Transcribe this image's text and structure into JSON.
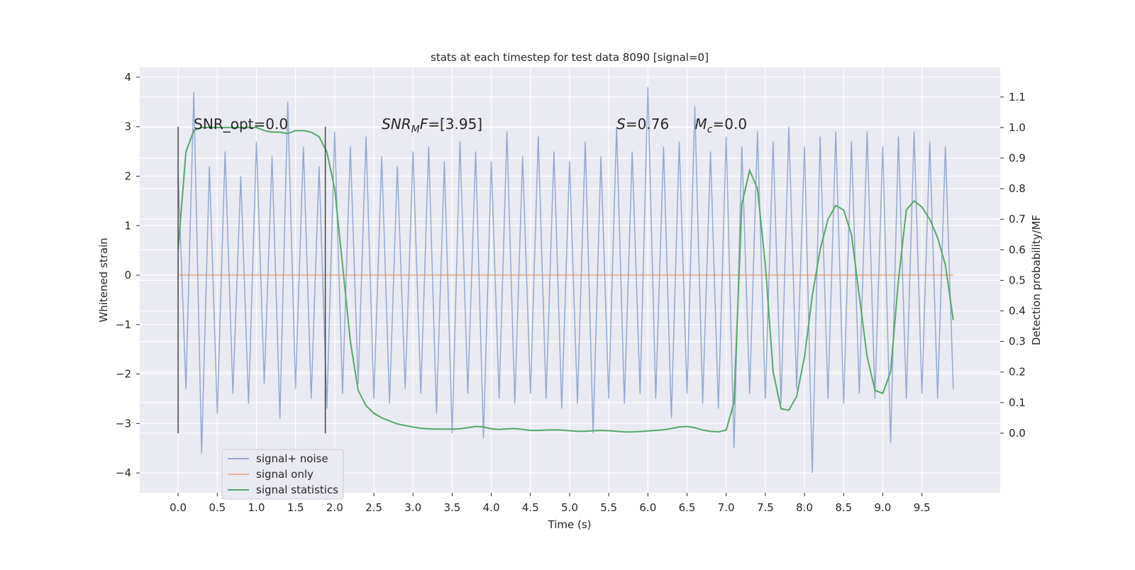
{
  "chart_data": {
    "type": "line",
    "title": "stats at each timestep for test data 8090 [signal=0]",
    "x_label": "Time (s)",
    "y_label": "Whitened strain",
    "y2_label": "Detection probability/MF",
    "xlim": [
      -0.49,
      10.5
    ],
    "ylim": [
      -4.4,
      4.2
    ],
    "y2lim": [
      -0.195,
      1.197
    ],
    "xticks": [
      {
        "value": 0,
        "label": "0.0"
      },
      {
        "value": 0.5,
        "label": "0.5"
      },
      {
        "value": 1,
        "label": "1.0"
      },
      {
        "value": 1.5,
        "label": "1.5"
      },
      {
        "value": 2,
        "label": "2.0"
      },
      {
        "value": 2.5,
        "label": "2.5"
      },
      {
        "value": 3,
        "label": "3.0"
      },
      {
        "value": 3.5,
        "label": "3.5"
      },
      {
        "value": 4,
        "label": "4.0"
      },
      {
        "value": 4.5,
        "label": "4.5"
      },
      {
        "value": 5,
        "label": "5.0"
      },
      {
        "value": 5.5,
        "label": "5.5"
      },
      {
        "value": 6,
        "label": "6.0"
      },
      {
        "value": 6.5,
        "label": "6.5"
      },
      {
        "value": 7,
        "label": "7.0"
      },
      {
        "value": 7.5,
        "label": "7.5"
      },
      {
        "value": 8,
        "label": "8.0"
      },
      {
        "value": 8.5,
        "label": "8.5"
      },
      {
        "value": 9,
        "label": "9.0"
      },
      {
        "value": 9.5,
        "label": "9.5"
      }
    ],
    "yticks": [
      {
        "value": -4,
        "label": "−4"
      },
      {
        "value": -3,
        "label": "−3"
      },
      {
        "value": -2,
        "label": "−2"
      },
      {
        "value": -1,
        "label": "−1"
      },
      0,
      1,
      2,
      3,
      4
    ],
    "y2ticks": [
      {
        "value": 0,
        "label": "0.0"
      },
      {
        "value": 0.1,
        "label": "0.1"
      },
      {
        "value": 0.2,
        "label": "0.2"
      },
      {
        "value": 0.3,
        "label": "0.3"
      },
      {
        "value": 0.4,
        "label": "0.4"
      },
      {
        "value": 0.5,
        "label": "0.5"
      },
      {
        "value": 0.6,
        "label": "0.6"
      },
      {
        "value": 0.7,
        "label": "0.7"
      },
      {
        "value": 0.8,
        "label": "0.8"
      },
      {
        "value": 0.9,
        "label": "0.9"
      },
      {
        "value": 1,
        "label": "1.0"
      },
      {
        "value": 1.1,
        "label": "1.1"
      }
    ],
    "grid": true,
    "legend": "lower left",
    "x": [
      0,
      0.1,
      0.2,
      0.3,
      0.4,
      0.5,
      0.6,
      0.7,
      0.8,
      0.9,
      1,
      1.1,
      1.2,
      1.3,
      1.4,
      1.5,
      1.6,
      1.7,
      1.8,
      1.9,
      2,
      2.1,
      2.2,
      2.3,
      2.4,
      2.5,
      2.6,
      2.7,
      2.8,
      2.9,
      3,
      3.1,
      3.2,
      3.3,
      3.4,
      3.5,
      3.6,
      3.7,
      3.8,
      3.9,
      4,
      4.1,
      4.2,
      4.3,
      4.4,
      4.5,
      4.6,
      4.7,
      4.8,
      4.9,
      5,
      5.1,
      5.2,
      5.3,
      5.4,
      5.5,
      5.6,
      5.7,
      5.8,
      5.9,
      6,
      6.1,
      6.2,
      6.3,
      6.4,
      6.5,
      6.6,
      6.7,
      6.8,
      6.9,
      7,
      7.1,
      7.2,
      7.3,
      7.4,
      7.5,
      7.6,
      7.7,
      7.8,
      7.9,
      8,
      8.1,
      8.2,
      8.3,
      8.4,
      8.5,
      8.6,
      8.7,
      8.8,
      8.9,
      9,
      9.1,
      9.2,
      9.3,
      9.4,
      9.5,
      9.6,
      9.7,
      9.8,
      9.9
    ],
    "series": [
      {
        "name": "signal+ noise",
        "color": "#4c72b0",
        "values": [
          2.1,
          -2.3,
          3.7,
          -3.6,
          2.2,
          -2.8,
          2.5,
          -2.4,
          2.0,
          -2.6,
          2.7,
          -2.2,
          2.4,
          -2.9,
          3.5,
          -2.3,
          2.6,
          -2.5,
          2.2,
          -2.7,
          2.9,
          -2.4,
          2.6,
          -2.2,
          2.8,
          -2.5,
          2.4,
          -2.6,
          2.2,
          -2.3,
          2.5,
          -2.4,
          2.6,
          -2.8,
          2.3,
          -3.2,
          2.7,
          -2.4,
          2.5,
          -3.3,
          2.3,
          -2.5,
          2.9,
          -2.6,
          2.4,
          -2.4,
          2.8,
          -2.5,
          2.5,
          -2.7,
          2.3,
          -2.6,
          2.7,
          -3.2,
          2.4,
          -2.5,
          3.0,
          -2.6,
          2.5,
          -2.4,
          3.8,
          -2.5,
          2.6,
          -2.9,
          2.7,
          -2.4,
          3.4,
          -2.6,
          2.5,
          -2.7,
          2.8,
          -3.5,
          2.6,
          -2.4,
          2.9,
          -2.5,
          2.7,
          -2.6,
          3.0,
          -2.3,
          2.6,
          -4.0,
          2.8,
          -2.5,
          2.9,
          -2.6,
          2.7,
          -2.4,
          2.9,
          -2.5,
          2.6,
          -3.4,
          2.8,
          -2.5,
          2.9,
          -2.4,
          2.7,
          -2.5,
          2.6,
          -2.3
        ]
      },
      {
        "name": "signal only",
        "color": "#dd8452",
        "values": [
          0,
          0,
          0,
          0,
          0,
          0,
          0,
          0,
          0,
          0,
          0,
          0,
          0,
          0,
          0,
          0,
          0,
          0,
          0,
          0,
          0,
          0,
          0,
          0,
          0,
          0,
          0,
          0,
          0,
          0,
          0,
          0,
          0,
          0,
          0,
          0,
          0,
          0,
          0,
          0,
          0,
          0,
          0,
          0,
          0,
          0,
          0,
          0,
          0,
          0,
          0,
          0,
          0,
          0,
          0,
          0,
          0,
          0,
          0,
          0,
          0,
          0,
          0,
          0,
          0,
          0,
          0,
          0,
          0,
          0,
          0,
          0,
          0,
          0,
          0,
          0,
          0,
          0,
          0,
          0,
          0,
          0,
          0,
          0,
          0,
          0,
          0,
          0,
          0,
          0,
          0,
          0,
          0,
          0,
          0,
          0,
          0,
          0,
          0,
          0
        ]
      },
      {
        "name": "signal statistics",
        "color": "#55a868",
        "axis": "y2",
        "values": [
          0.6,
          0.92,
          0.99,
          1.0,
          1.0,
          1.0,
          1.0,
          1.0,
          1.0,
          1.0,
          1.0,
          0.99,
          0.985,
          0.985,
          0.98,
          0.99,
          0.99,
          0.985,
          0.97,
          0.92,
          0.8,
          0.55,
          0.3,
          0.14,
          0.09,
          0.065,
          0.05,
          0.04,
          0.03,
          0.025,
          0.02,
          0.016,
          0.014,
          0.013,
          0.013,
          0.013,
          0.014,
          0.018,
          0.022,
          0.02,
          0.014,
          0.012,
          0.014,
          0.015,
          0.012,
          0.009,
          0.009,
          0.01,
          0.011,
          0.01,
          0.008,
          0.006,
          0.006,
          0.008,
          0.009,
          0.008,
          0.006,
          0.004,
          0.004,
          0.005,
          0.007,
          0.009,
          0.011,
          0.015,
          0.02,
          0.022,
          0.018,
          0.01,
          0.006,
          0.004,
          0.01,
          0.1,
          0.75,
          0.86,
          0.8,
          0.55,
          0.2,
          0.08,
          0.075,
          0.12,
          0.25,
          0.45,
          0.6,
          0.7,
          0.745,
          0.73,
          0.65,
          0.45,
          0.25,
          0.14,
          0.13,
          0.2,
          0.5,
          0.73,
          0.76,
          0.74,
          0.7,
          0.64,
          0.55,
          0.37
        ]
      }
    ],
    "vlines": [
      {
        "x": 0,
        "ymin": -3.2,
        "ymax": 3.0,
        "color": "#444444"
      },
      {
        "x": 1.88,
        "ymin": -3.2,
        "ymax": 3.0,
        "color": "#444444"
      }
    ],
    "annotations": [
      {
        "x": 0.2,
        "y": 2.95,
        "parts": [
          {
            "text": "SNR_opt=0.0"
          }
        ]
      },
      {
        "x": 2.6,
        "y": 2.95,
        "parts": [
          {
            "text": "SNR",
            "style": "italic"
          },
          {
            "text": "M",
            "style": "sub"
          },
          {
            "text": "F",
            "style": "italic"
          },
          {
            "text": "=[3.95]"
          }
        ]
      },
      {
        "x": 5.6,
        "y": 2.95,
        "parts": [
          {
            "text": "S",
            "style": "italic"
          },
          {
            "text": "=0.76"
          }
        ]
      },
      {
        "x": 6.6,
        "y": 2.95,
        "parts": [
          {
            "text": "M",
            "style": "italic"
          },
          {
            "text": "c",
            "style": "sub"
          },
          {
            "text": "=0.0"
          }
        ]
      }
    ]
  }
}
